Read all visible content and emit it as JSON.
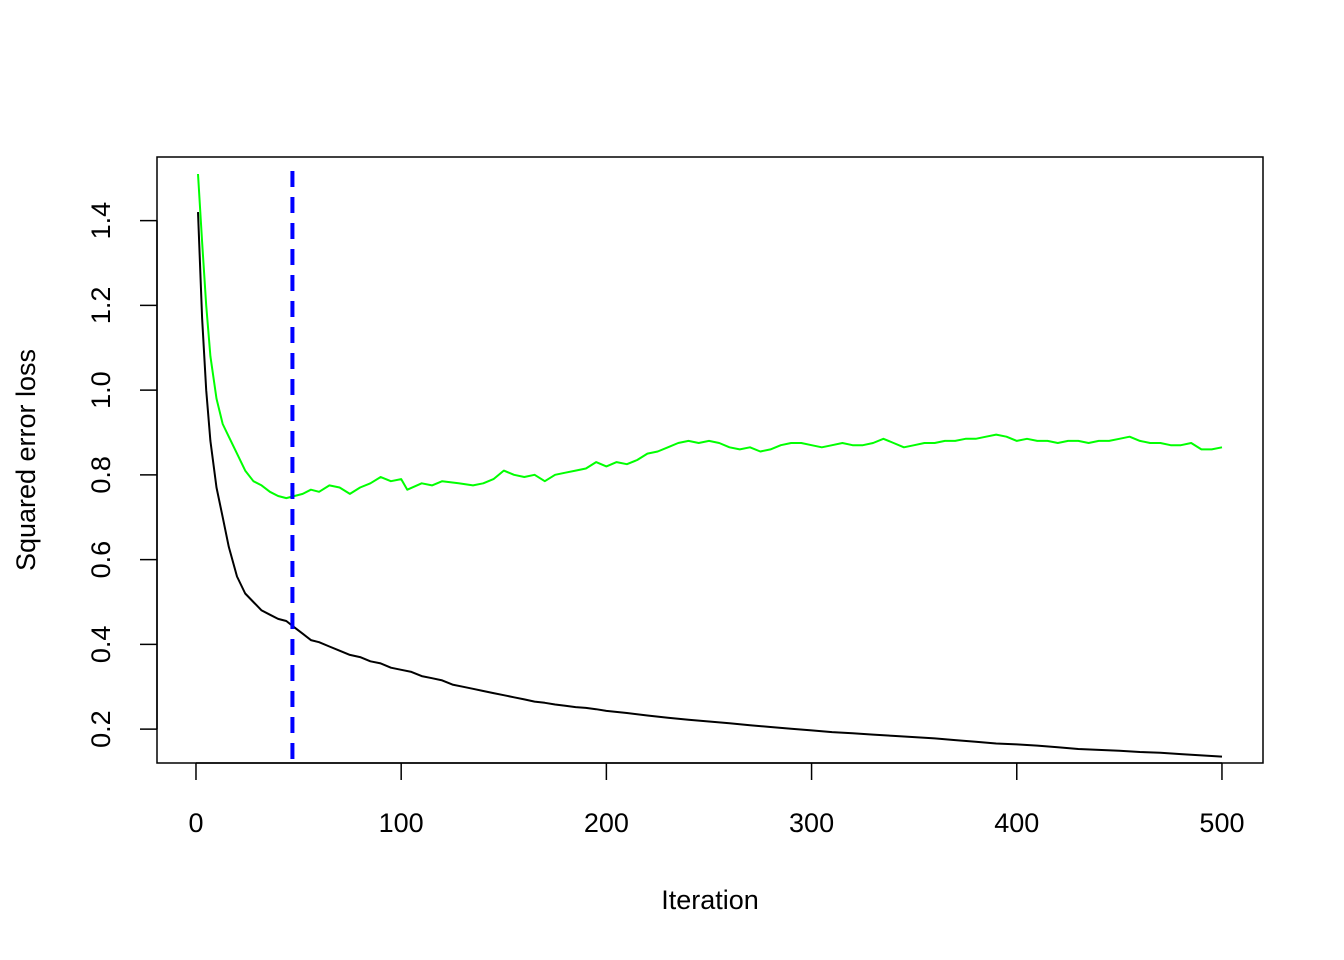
{
  "chart_data": {
    "type": "line",
    "title": "",
    "xlabel": "Iteration",
    "ylabel": "Squared error loss",
    "xlim": [
      -19,
      520
    ],
    "ylim": [
      0.12,
      1.55
    ],
    "x_ticks": [
      0,
      100,
      200,
      300,
      400,
      500
    ],
    "x_tick_labels": [
      "0",
      "100",
      "200",
      "300",
      "400",
      "500"
    ],
    "y_ticks": [
      0.2,
      0.4,
      0.6,
      0.8,
      1.0,
      1.2,
      1.4
    ],
    "y_tick_labels": [
      "0.2",
      "0.4",
      "0.6",
      "0.8",
      "1.0",
      "1.2",
      "1.4"
    ],
    "grid": false,
    "legend": "none",
    "vline": {
      "x": 47,
      "color": "#0000ff",
      "style": "dashed"
    },
    "series": [
      {
        "color": "#00ff00",
        "points": [
          [
            1,
            1.51
          ],
          [
            3,
            1.35
          ],
          [
            5,
            1.2
          ],
          [
            7,
            1.08
          ],
          [
            10,
            0.98
          ],
          [
            13,
            0.92
          ],
          [
            16,
            0.89
          ],
          [
            20,
            0.85
          ],
          [
            24,
            0.81
          ],
          [
            28,
            0.785
          ],
          [
            32,
            0.775
          ],
          [
            36,
            0.76
          ],
          [
            40,
            0.75
          ],
          [
            44,
            0.745
          ],
          [
            48,
            0.75
          ],
          [
            52,
            0.755
          ],
          [
            56,
            0.765
          ],
          [
            60,
            0.76
          ],
          [
            65,
            0.775
          ],
          [
            70,
            0.77
          ],
          [
            75,
            0.755
          ],
          [
            80,
            0.77
          ],
          [
            85,
            0.78
          ],
          [
            90,
            0.795
          ],
          [
            95,
            0.785
          ],
          [
            100,
            0.79
          ],
          [
            103,
            0.765
          ],
          [
            110,
            0.78
          ],
          [
            115,
            0.775
          ],
          [
            120,
            0.785
          ],
          [
            128,
            0.78
          ],
          [
            135,
            0.775
          ],
          [
            140,
            0.78
          ],
          [
            145,
            0.79
          ],
          [
            150,
            0.81
          ],
          [
            155,
            0.8
          ],
          [
            160,
            0.795
          ],
          [
            165,
            0.8
          ],
          [
            170,
            0.785
          ],
          [
            175,
            0.8
          ],
          [
            180,
            0.805
          ],
          [
            185,
            0.81
          ],
          [
            190,
            0.815
          ],
          [
            195,
            0.83
          ],
          [
            200,
            0.82
          ],
          [
            205,
            0.83
          ],
          [
            210,
            0.825
          ],
          [
            215,
            0.835
          ],
          [
            220,
            0.85
          ],
          [
            225,
            0.855
          ],
          [
            230,
            0.865
          ],
          [
            235,
            0.875
          ],
          [
            240,
            0.88
          ],
          [
            245,
            0.875
          ],
          [
            250,
            0.88
          ],
          [
            255,
            0.875
          ],
          [
            260,
            0.865
          ],
          [
            265,
            0.86
          ],
          [
            270,
            0.865
          ],
          [
            275,
            0.855
          ],
          [
            280,
            0.86
          ],
          [
            285,
            0.87
          ],
          [
            290,
            0.875
          ],
          [
            295,
            0.875
          ],
          [
            300,
            0.87
          ],
          [
            305,
            0.865
          ],
          [
            310,
            0.87
          ],
          [
            315,
            0.875
          ],
          [
            320,
            0.87
          ],
          [
            325,
            0.87
          ],
          [
            330,
            0.875
          ],
          [
            335,
            0.885
          ],
          [
            340,
            0.875
          ],
          [
            345,
            0.865
          ],
          [
            350,
            0.87
          ],
          [
            355,
            0.875
          ],
          [
            360,
            0.875
          ],
          [
            365,
            0.88
          ],
          [
            370,
            0.88
          ],
          [
            375,
            0.885
          ],
          [
            380,
            0.885
          ],
          [
            385,
            0.89
          ],
          [
            390,
            0.895
          ],
          [
            395,
            0.89
          ],
          [
            400,
            0.88
          ],
          [
            405,
            0.885
          ],
          [
            410,
            0.88
          ],
          [
            415,
            0.88
          ],
          [
            420,
            0.875
          ],
          [
            425,
            0.88
          ],
          [
            430,
            0.88
          ],
          [
            435,
            0.875
          ],
          [
            440,
            0.88
          ],
          [
            445,
            0.88
          ],
          [
            450,
            0.885
          ],
          [
            455,
            0.89
          ],
          [
            460,
            0.88
          ],
          [
            465,
            0.875
          ],
          [
            470,
            0.875
          ],
          [
            475,
            0.87
          ],
          [
            480,
            0.87
          ],
          [
            485,
            0.875
          ],
          [
            490,
            0.86
          ],
          [
            495,
            0.86
          ],
          [
            500,
            0.865
          ]
        ]
      },
      {
        "color": "#000000",
        "points": [
          [
            1,
            1.42
          ],
          [
            3,
            1.17
          ],
          [
            5,
            1.0
          ],
          [
            7,
            0.88
          ],
          [
            10,
            0.77
          ],
          [
            13,
            0.7
          ],
          [
            16,
            0.63
          ],
          [
            20,
            0.56
          ],
          [
            24,
            0.52
          ],
          [
            28,
            0.5
          ],
          [
            32,
            0.48
          ],
          [
            36,
            0.47
          ],
          [
            40,
            0.46
          ],
          [
            44,
            0.455
          ],
          [
            48,
            0.44
          ],
          [
            52,
            0.425
          ],
          [
            56,
            0.41
          ],
          [
            60,
            0.405
          ],
          [
            65,
            0.395
          ],
          [
            70,
            0.385
          ],
          [
            75,
            0.375
          ],
          [
            80,
            0.37
          ],
          [
            85,
            0.36
          ],
          [
            90,
            0.355
          ],
          [
            95,
            0.345
          ],
          [
            100,
            0.34
          ],
          [
            105,
            0.335
          ],
          [
            110,
            0.325
          ],
          [
            115,
            0.32
          ],
          [
            120,
            0.315
          ],
          [
            125,
            0.305
          ],
          [
            130,
            0.3
          ],
          [
            135,
            0.295
          ],
          [
            140,
            0.29
          ],
          [
            145,
            0.285
          ],
          [
            150,
            0.28
          ],
          [
            155,
            0.275
          ],
          [
            160,
            0.27
          ],
          [
            165,
            0.265
          ],
          [
            170,
            0.262
          ],
          [
            175,
            0.258
          ],
          [
            180,
            0.255
          ],
          [
            185,
            0.252
          ],
          [
            190,
            0.25
          ],
          [
            195,
            0.247
          ],
          [
            200,
            0.243
          ],
          [
            210,
            0.238
          ],
          [
            220,
            0.232
          ],
          [
            230,
            0.227
          ],
          [
            240,
            0.222
          ],
          [
            250,
            0.218
          ],
          [
            260,
            0.214
          ],
          [
            270,
            0.209
          ],
          [
            280,
            0.205
          ],
          [
            290,
            0.201
          ],
          [
            300,
            0.197
          ],
          [
            310,
            0.193
          ],
          [
            320,
            0.19
          ],
          [
            330,
            0.187
          ],
          [
            340,
            0.184
          ],
          [
            350,
            0.181
          ],
          [
            360,
            0.178
          ],
          [
            370,
            0.174
          ],
          [
            380,
            0.17
          ],
          [
            390,
            0.166
          ],
          [
            400,
            0.164
          ],
          [
            410,
            0.161
          ],
          [
            420,
            0.157
          ],
          [
            430,
            0.153
          ],
          [
            440,
            0.151
          ],
          [
            450,
            0.149
          ],
          [
            460,
            0.146
          ],
          [
            470,
            0.144
          ],
          [
            480,
            0.141
          ],
          [
            490,
            0.138
          ],
          [
            500,
            0.135
          ]
        ]
      }
    ]
  }
}
